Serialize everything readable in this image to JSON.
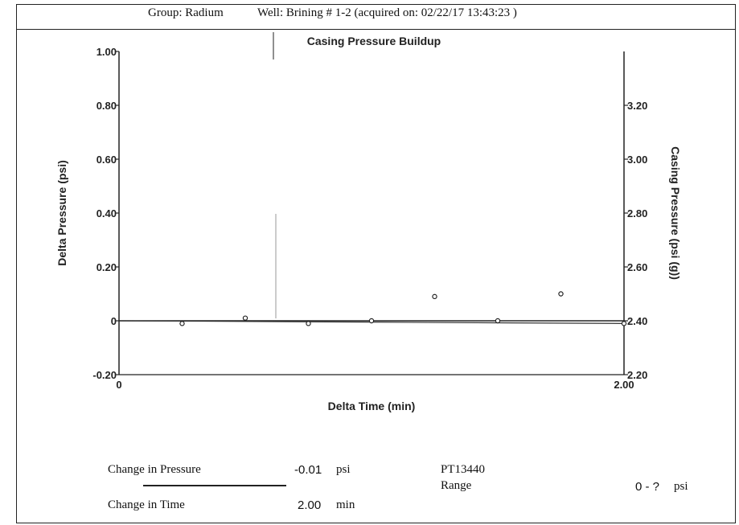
{
  "header": {
    "group": "Group: Radium",
    "well": "Well: Brining # 1-2 (acquired on: 02/22/17 13:43:23 )"
  },
  "chart_data": {
    "type": "scatter",
    "title": "Casing Pressure Buildup",
    "xlabel": "Delta Time (min)",
    "ylabel": "Delta Pressure (psi)",
    "y2label": "Casing Pressure (psi (g))",
    "xlim": [
      0,
      2.0
    ],
    "ylim": [
      -0.2,
      1.0
    ],
    "y2lim": [
      2.2,
      3.4
    ],
    "x_ticks": [
      "0",
      "2.00"
    ],
    "y_ticks": [
      {
        "v": 1.0,
        "label": "1.00"
      },
      {
        "v": 0.8,
        "label": "0.80"
      },
      {
        "v": 0.6,
        "label": "0.60"
      },
      {
        "v": 0.4,
        "label": "0.40"
      },
      {
        "v": 0.2,
        "label": "0.20"
      },
      {
        "v": 0.0,
        "label": "0"
      },
      {
        "v": -0.2,
        "label": "-0.20"
      }
    ],
    "y2_ticks": [
      {
        "v": 3.2,
        "label": "3.20"
      },
      {
        "v": 3.0,
        "label": "3.00"
      },
      {
        "v": 2.8,
        "label": "2.80"
      },
      {
        "v": 2.6,
        "label": "2.60"
      },
      {
        "v": 2.4,
        "label": "2.40"
      },
      {
        "v": 2.2,
        "label": "2.20"
      }
    ],
    "grid": false,
    "series": [
      {
        "x": [
          0.25,
          0.5,
          0.75,
          1.0,
          1.25,
          1.5,
          1.75,
          2.0
        ],
        "y": [
          -0.01,
          0.01,
          -0.01,
          0.0,
          0.09,
          0.0,
          0.1,
          -0.01
        ]
      }
    ],
    "trend_line": {
      "x": [
        0,
        2.0
      ],
      "y": [
        0.0,
        -0.01
      ]
    }
  },
  "footer": {
    "change_pressure_label": "Change in Pressure",
    "change_pressure_value": "-0.01",
    "change_pressure_unit": "psi",
    "change_time_label": "Change in Time",
    "change_time_value": "2.00",
    "change_time_unit": "min",
    "sensor_id": "PT13440",
    "range_label": "Range",
    "range_value": "0 - ?",
    "range_unit": "psi"
  }
}
